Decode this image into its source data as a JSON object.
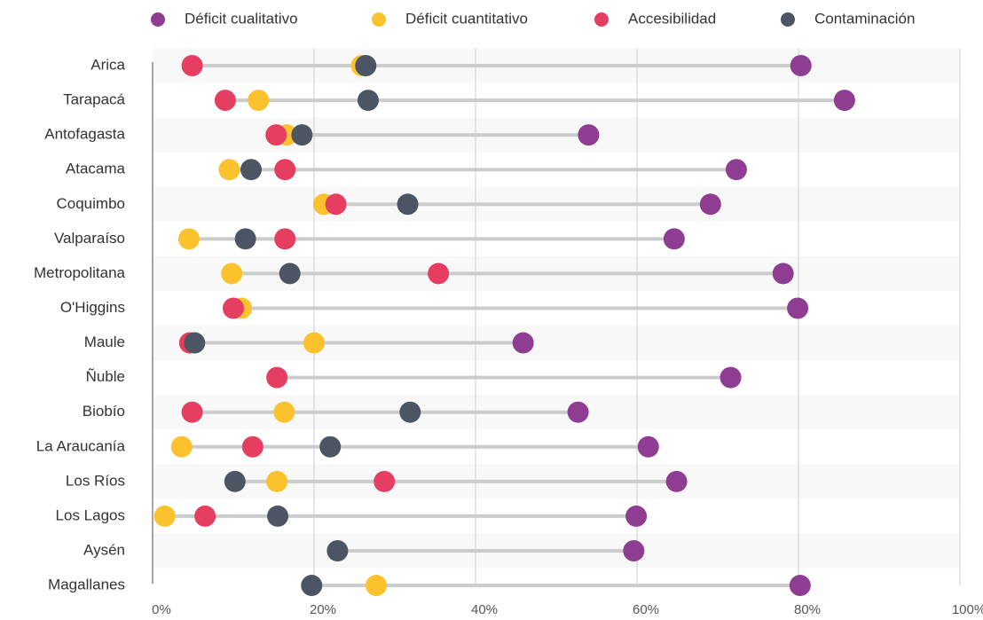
{
  "chart_data": {
    "type": "dot",
    "categories": [
      "Arica",
      "Tarapacá",
      "Antofagasta",
      "Atacama",
      "Coquimbo",
      "Valparaíso",
      "Metropolitana",
      "O'Higgins",
      "Maule",
      "Ñuble",
      "Biobío",
      "La Araucanía",
      "Los Ríos",
      "Los Lagos",
      "Aysén",
      "Magallanes"
    ],
    "series": [
      {
        "name": "Déficit cualitativo",
        "color": "#8e3d92",
        "values": [
          80.3,
          85.7,
          54.0,
          72.3,
          69.1,
          64.6,
          78.1,
          79.9,
          45.9,
          71.6,
          52.7,
          61.4,
          64.9,
          59.9,
          59.6,
          80.2
        ]
      },
      {
        "name": "Déficit cuantitativo",
        "color": "#fbc22e",
        "values": [
          25.9,
          13.1,
          16.6,
          9.5,
          21.2,
          4.5,
          9.8,
          11.0,
          20.0,
          null,
          16.3,
          3.6,
          15.4,
          1.5,
          null,
          27.7
        ]
      },
      {
        "name": "Accesibilidad",
        "color": "#e63e60",
        "values": [
          4.9,
          9.0,
          15.3,
          16.4,
          22.7,
          16.4,
          35.4,
          10.0,
          4.6,
          15.4,
          4.9,
          12.4,
          28.7,
          6.5,
          null,
          null
        ]
      },
      {
        "name": "Contaminación",
        "color": "#4b5563",
        "values": [
          26.4,
          26.7,
          18.5,
          12.2,
          31.6,
          11.5,
          17.0,
          null,
          5.2,
          null,
          31.9,
          22.0,
          10.2,
          15.5,
          22.9,
          19.7
        ]
      }
    ],
    "xlim": [
      0,
      100
    ],
    "xticks": [
      {
        "value": 0,
        "label": "0%"
      },
      {
        "value": 20,
        "label": "20%"
      },
      {
        "value": 40,
        "label": "40%"
      },
      {
        "value": 60,
        "label": "60%"
      },
      {
        "value": 80,
        "label": "80%"
      },
      {
        "value": 100,
        "label": "100%"
      }
    ],
    "grid": true,
    "legend": "top"
  }
}
